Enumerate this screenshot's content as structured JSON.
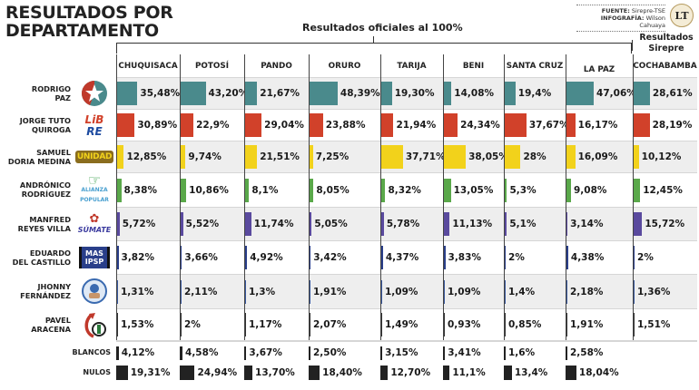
{
  "header": {
    "title_line1": "RESULTADOS POR",
    "title_line2": "DEPARTAMENTO",
    "subtitle": "Resultados oficiales al 100%",
    "sirepre_line1": "Resultados",
    "sirepre_line2": "Sirepre",
    "source_label": "FUENTE:",
    "source_value": "Sirepre-TSE",
    "infographic_label": "INFOGRAFÍA:",
    "infographic_value": "Wilson Cahuaya",
    "publisher_logo": "LT"
  },
  "colors": {
    "Rodrigo Paz": "#4a8a8c",
    "Jorge Tuto Quiroga": "#d1412a",
    "Samuel Doria Medina": "#f2d21b",
    "Andrónico Rodríguez": "#5aa84a",
    "Manfred Reyes Villa": "#5a4a9e",
    "Eduardo Del Castillo": "#2a3f8a",
    "Jhonny Fernández": "#3a5aa0",
    "Pavel Aracena": "#333333",
    "Blancos": "#222222",
    "Nulos": "#222222"
  },
  "chart_data": {
    "type": "table",
    "title": "RESULTADOS POR DEPARTAMENTO",
    "subtitle": "Resultados oficiales al 100%",
    "columns": [
      "CHUQUISACA",
      "POTOSÍ",
      "PANDO",
      "ORURO",
      "TARIJA",
      "BENI",
      "SANTA CRUZ",
      "LA PAZ",
      "COCHABAMBA"
    ],
    "column_notes": {
      "COCHABAMBA": "Resultados Sirepre"
    },
    "candidates": [
      {
        "name_line1": "RODRIGO",
        "name_line2": "PAZ",
        "party": "PDC",
        "logo": "star-logo-icon",
        "values": [
          35.48,
          43.2,
          21.67,
          48.39,
          19.3,
          14.08,
          19.4,
          47.06,
          28.61
        ],
        "labels": [
          "35,48",
          "43,20",
          "21,67",
          "48,39",
          "19,30",
          "14,08",
          "19,4",
          "47,06",
          "28,61"
        ]
      },
      {
        "name_line1": "JORGE TUTO",
        "name_line2": "QUIROGA",
        "party": "LIBRE",
        "logo": "libre-logo-icon",
        "values": [
          30.89,
          22.9,
          29.04,
          23.88,
          21.94,
          24.34,
          37.67,
          16.17,
          28.19
        ],
        "labels": [
          "30,89",
          "22,9",
          "29,04",
          "23,88",
          "21,94",
          "24,34",
          "37,67",
          "16,17",
          "28,19"
        ]
      },
      {
        "name_line1": "SAMUEL",
        "name_line2": "DORIA MEDINA",
        "party": "UNIDAD",
        "logo": "unidad-logo-icon",
        "values": [
          12.85,
          9.74,
          21.51,
          7.25,
          37.71,
          38.05,
          28,
          16.09,
          10.12
        ],
        "labels": [
          "12,85",
          "9,74",
          "21,51",
          "7,25",
          "37,71",
          "38,05",
          "28",
          "16,09",
          "10,12"
        ]
      },
      {
        "name_line1": "ANDRÓNICO",
        "name_line2": "RODRÍGUEZ",
        "party": "ALIANZA POPULAR",
        "logo": "alianza-popular-logo-icon",
        "values": [
          8.38,
          10.86,
          8.1,
          8.05,
          8.32,
          13.05,
          5.3,
          9.08,
          12.45
        ],
        "labels": [
          "8,38",
          "10,86",
          "8,1",
          "8,05",
          "8,32",
          "13,05",
          "5,3",
          "9,08",
          "12,45"
        ]
      },
      {
        "name_line1": "MANFRED",
        "name_line2": "REYES VILLA",
        "party": "SÚMATE",
        "logo": "sumate-logo-icon",
        "values": [
          5.72,
          5.52,
          11.74,
          5.05,
          5.78,
          11.13,
          5.1,
          3.14,
          15.72
        ],
        "labels": [
          "5,72",
          "5,52",
          "11,74",
          "5,05",
          "5,78",
          "11,13",
          "5,1",
          "3,14",
          "15,72"
        ]
      },
      {
        "name_line1": "EDUARDO",
        "name_line2": "DEL CASTILLO",
        "party": "MAS IPSP",
        "logo": "mas-ipsp-logo-icon",
        "values": [
          3.82,
          3.66,
          4.92,
          3.42,
          4.37,
          3.83,
          2,
          4.38,
          2
        ],
        "labels": [
          "3,82",
          "3,66",
          "4,92",
          "3,42",
          "4,37",
          "3,83",
          "2",
          "4,38",
          "2"
        ]
      },
      {
        "name_line1": "JHONNY",
        "name_line2": "FERNÁNDEZ",
        "party": "LA FUERZA DEL PUEBLO",
        "logo": "fuerza-del-pueblo-logo-icon",
        "values": [
          1.31,
          2.11,
          1.3,
          1.91,
          1.09,
          1.09,
          1.4,
          2.18,
          1.36
        ],
        "labels": [
          "1,31",
          "2,11",
          "1,3",
          "1,91",
          "1,09",
          "1,09",
          "1,4",
          "2,18",
          "1,36"
        ]
      },
      {
        "name_line1": "PAVEL",
        "name_line2": "ARACENA",
        "party": "ADN",
        "logo": "adn-logo-icon",
        "values": [
          1.53,
          2,
          1.17,
          2.07,
          1.49,
          0.93,
          0.85,
          1.91,
          1.51
        ],
        "labels": [
          "1,53",
          "2",
          "1,17",
          "2,07",
          "1,49",
          "0,93",
          "0,85",
          "1,91",
          "1,51"
        ]
      }
    ],
    "extras": [
      {
        "label": "BLANCOS",
        "values": [
          4.12,
          4.58,
          3.67,
          2.5,
          3.15,
          3.41,
          1.6,
          2.58
        ],
        "labels": [
          "4,12",
          "4,58",
          "3,67",
          "2,50",
          "3,15",
          "3,41",
          "1,6",
          "2,58"
        ]
      },
      {
        "label": "NULOS",
        "values": [
          19.31,
          24.94,
          13.7,
          18.4,
          12.7,
          11.1,
          13.4,
          18.04
        ],
        "labels": [
          "19,31",
          "24,94",
          "13,70",
          "18,40",
          "12,70",
          "11,1",
          "13,4",
          "18,04"
        ]
      }
    ],
    "unit": "%"
  }
}
